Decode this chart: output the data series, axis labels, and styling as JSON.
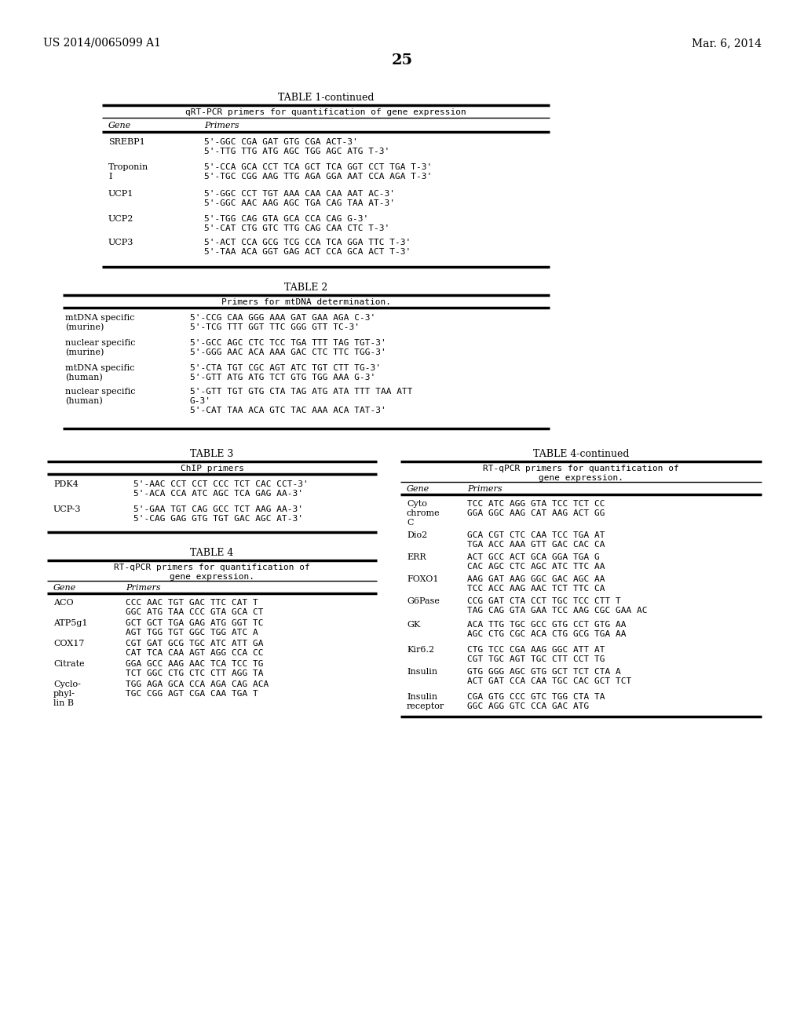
{
  "page_header_left": "US 2014/0065099 A1",
  "page_header_right": "Mar. 6, 2014",
  "page_number": "25",
  "bg_color": "#ffffff",
  "table1_title": "TABLE 1-continued",
  "table1_subtitle": "qRT-PCR primers for quantification of gene expression",
  "table1_col1": "Gene",
  "table1_col2": "Primers",
  "table1_rows": [
    [
      "SREBP1",
      "5'-GGC CGA GAT GTG CGA ACT-3'\n5'-TTG TTG ATG AGC TGG AGC ATG T-3'"
    ],
    [
      "Troponin\nI",
      "5'-CCA GCA CCT TCA GCT TCA GGT CCT TGA T-3'\n5'-TGC CGG AAG TTG AGA GGA AAT CCA AGA T-3'"
    ],
    [
      "UCP1",
      "5'-GGC CCT TGT AAA CAA CAA AAT AC-3'\n5'-GGC AAC AAG AGC TGA CAG TAA AT-3'"
    ],
    [
      "UCP2",
      "5'-TGG CAG GTA GCA CCA CAG G-3'\n5'-CAT CTG GTC TTG CAG CAA CTC T-3'"
    ],
    [
      "UCP3",
      "5'-ACT CCA GCG TCG CCA TCA GGA TTC T-3'\n5'-TAA ACA GGT GAG ACT CCA GCA ACT T-3'"
    ]
  ],
  "table2_title": "TABLE 2",
  "table2_subtitle": "Primers for mtDNA determination.",
  "table2_rows": [
    [
      "mtDNA specific\n(murine)",
      "5'-CCG CAA GGG AAA GAT GAA AGA C-3'\n5'-TCG TTT GGT TTC GGG GTT TC-3'"
    ],
    [
      "nuclear specific\n(murine)",
      "5'-GCC AGC CTC TCC TGA TTT TAG TGT-3'\n5'-GGG AAC ACA AAA GAC CTC TTC TGG-3'"
    ],
    [
      "mtDNA specific\n(human)",
      "5'-CTA TGT CGC AGT ATC TGT CTT TG-3'\n5'-GTT ATG ATG TCT GTG TGG AAA G-3'"
    ],
    [
      "nuclear specific\n(human)",
      "5'-GTT TGT GTG CTA TAG ATG ATA TTT TAA ATT\nG-3'\n5'-CAT TAA ACA GTC TAC AAA ACA TAT-3'"
    ]
  ],
  "table3_title": "TABLE 3",
  "table3_subtitle": "ChIP primers",
  "table3_rows": [
    [
      "PDK4",
      "5'-AAC CCT CCT CCC TCT CAC CCT-3'\n5'-ACA CCA ATC AGC TCA GAG AA-3'"
    ],
    [
      "UCP-3",
      "5'-GAA TGT CAG GCC TCT AAG AA-3'\n5'-CAG GAG GTG TGT GAC AGC AT-3'"
    ]
  ],
  "table4_title": "TABLE 4",
  "table4_subtitle": "RT-qPCR primers for quantification of\ngene expression.",
  "table4_col1": "Gene",
  "table4_col2": "Primers",
  "table4_rows": [
    [
      "ACO",
      "CCC AAC TGT GAC TTC CAT T\nGGC ATG TAA CCC GTA GCA CT"
    ],
    [
      "ATP5g1",
      "GCT GCT TGA GAG ATG GGT TC\nAGT TGG TGT GGC TGG ATC A"
    ],
    [
      "COX17",
      "CGT GAT GCG TGC ATC ATT GA\nCAT TCA CAA AGT AGG CCA CC"
    ],
    [
      "Citrate",
      "GGA GCC AAG AAC TCA TCC TG\nTCT GGC CTG CTC CTT AGG TA"
    ],
    [
      "Cyclo-\nphyl-\nlin B",
      "TGG AGA GCA CCA AGA CAG ACA\nTGC CGG AGT CGA CAA TGA T"
    ]
  ],
  "table4cont_title": "TABLE 4-continued",
  "table4cont_subtitle": "RT-qPCR primers for quantification of\ngene expression.",
  "table4cont_col1": "Gene",
  "table4cont_col2": "Primers",
  "table4cont_rows": [
    [
      "Cyto\nchrome\nC",
      "TCC ATC AGG GTA TCC TCT CC\nGGA GGC AAG CAT AAG ACT GG"
    ],
    [
      "Dio2",
      "GCA CGT CTC CAA TCC TGA AT\nTGA ACC AAA GTT GAC CAC CA"
    ],
    [
      "ERR",
      "ACT GCC ACT GCA GGA TGA G\nCAC AGC CTC AGC ATC TTC AA"
    ],
    [
      "FOXO1",
      "AAG GAT AAG GGC GAC AGC AA\nTCC ACC AAG AAC TCT TTC CA"
    ],
    [
      "G6Pase",
      "CCG GAT CTA CCT TGC TCC CTT T\nTAG CAG GTA GAA TCC AAG CGC GAA AC"
    ],
    [
      "GK",
      "ACA TTG TGC GCC GTG CCT GTG AA\nAGC CTG CGC ACA CTG GCG TGA AA"
    ],
    [
      "Kir6.2",
      "CTG TCC CGA AAG GGC ATT AT\nCGT TGC AGT TGC CTT CCT TG"
    ],
    [
      "Insulin",
      "GTG GGG AGC GTG GCT TCT CTA A\nACT GAT CCA CAA TGC CAC GCT TCT"
    ],
    [
      "Insulin\nreceptor",
      "CGA GTG CCC GTC TGG CTA TA\nGGC AGG GTC CCA GAC ATG"
    ]
  ]
}
